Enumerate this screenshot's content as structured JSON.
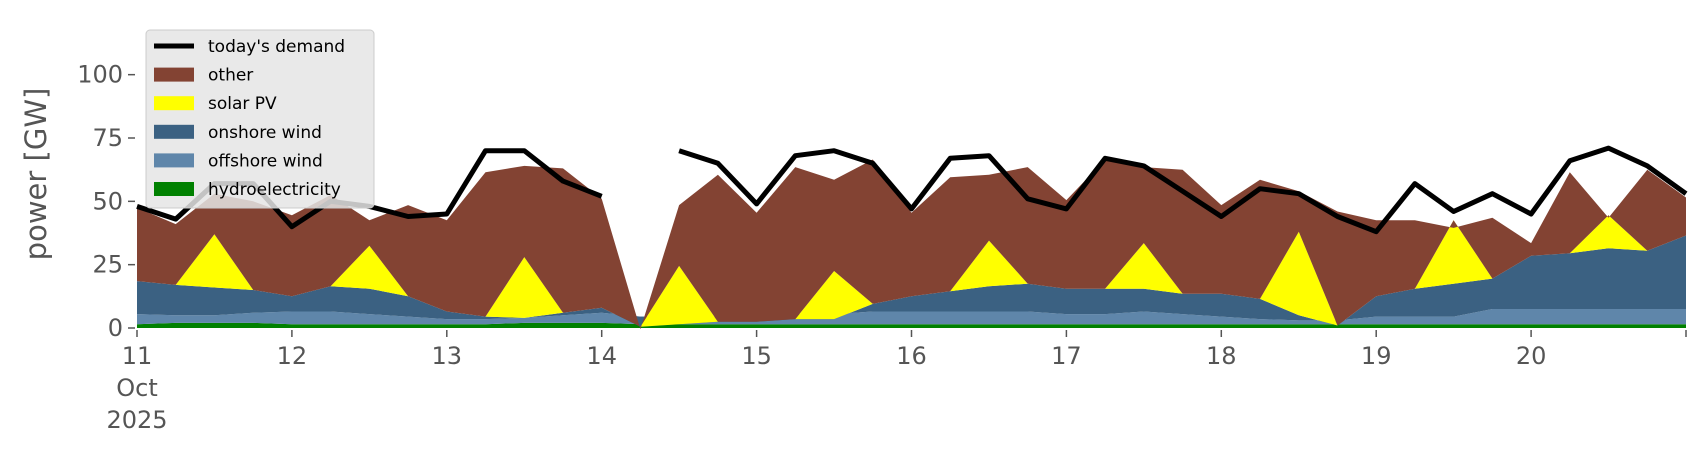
{
  "chart_data": {
    "type": "area",
    "ylabel": "power [GW]",
    "ylim": [
      0,
      120
    ],
    "xlim": [
      0,
      10
    ],
    "grid": false,
    "legend_placement": "top-left",
    "y_ticks": [
      0,
      25,
      50,
      75,
      100
    ],
    "x_ticks": [
      {
        "value": 0,
        "lines": [
          "11",
          "Oct",
          "2025"
        ]
      },
      {
        "value": 1,
        "lines": [
          "12"
        ]
      },
      {
        "value": 2,
        "lines": [
          "13"
        ]
      },
      {
        "value": 3,
        "lines": [
          "14"
        ]
      },
      {
        "value": 4,
        "lines": [
          "15"
        ]
      },
      {
        "value": 5,
        "lines": [
          "16"
        ]
      },
      {
        "value": 6,
        "lines": [
          "17"
        ]
      },
      {
        "value": 7,
        "lines": [
          "18"
        ]
      },
      {
        "value": 8,
        "lines": [
          "19"
        ]
      },
      {
        "value": 9,
        "lines": [
          "20"
        ]
      },
      {
        "value": 10,
        "lines": [
          ""
        ]
      }
    ],
    "x": [
      0,
      0.25,
      0.5,
      0.75,
      1,
      1.25,
      1.5,
      1.75,
      2,
      2.25,
      2.5,
      2.75,
      3,
      3.25,
      3.5,
      3.75,
      4,
      4.25,
      4.5,
      4.75,
      5,
      5.25,
      5.5,
      5.75,
      6,
      6.25,
      6.5,
      6.75,
      7,
      7.25,
      7.5,
      7.75,
      8,
      8.25,
      8.5,
      8.75,
      9,
      9.25,
      9.5,
      9.75,
      10
    ],
    "series": [
      {
        "name": "hydroelectricity",
        "color": "#008000",
        "kind": "area",
        "values": [
          1.5,
          2,
          2,
          2,
          1.5,
          1.5,
          1.5,
          1.5,
          1.5,
          1.5,
          2,
          2,
          2,
          1.5,
          1.5,
          1.5,
          1.5,
          1.5,
          1.5,
          1.5,
          1.5,
          1.5,
          1.5,
          1.5,
          1.5,
          1.5,
          1.5,
          1.5,
          1.5,
          1.5,
          1.5,
          1.5,
          1.5,
          1.5,
          1.5,
          1.5,
          1.5,
          1.5,
          1.5,
          1.5,
          1.5
        ]
      },
      {
        "name": "offshore wind",
        "color": "#5f86aa",
        "kind": "area",
        "values": [
          4,
          3,
          3,
          4,
          5,
          5,
          4,
          3,
          2,
          2,
          2,
          3,
          4,
          3,
          3,
          3,
          4,
          4,
          4,
          5,
          5,
          5,
          5,
          5,
          4,
          4,
          5,
          4,
          3,
          2,
          1.5,
          1.5,
          3,
          3,
          3,
          6,
          6,
          6,
          6,
          6,
          6
        ]
      },
      {
        "name": "onshore wind",
        "color": "#3b6182",
        "kind": "area",
        "values": [
          13,
          12,
          11,
          9,
          6,
          10,
          10,
          8,
          3,
          1,
          0,
          1,
          2,
          -4,
          -3,
          -2,
          -3,
          -2,
          -2,
          3,
          6,
          8,
          10,
          11,
          10,
          10,
          9,
          8,
          9,
          8,
          2,
          -2,
          8,
          11,
          13,
          12,
          21,
          22,
          24,
          23,
          29
        ]
      },
      {
        "name": "solar PV",
        "color": "#ffff00",
        "kind": "area",
        "values": [
          0,
          0,
          21,
          0,
          0,
          0,
          17,
          0,
          0,
          0,
          24,
          0,
          0,
          0,
          23,
          0,
          0,
          0,
          19,
          0,
          0,
          0,
          18,
          0,
          0,
          0,
          18,
          0,
          0,
          0,
          33,
          0,
          0,
          0,
          25,
          0,
          0,
          0,
          13,
          0,
          0
        ]
      },
      {
        "name": "other",
        "color": "#834333",
        "kind": "area",
        "values": [
          29,
          24,
          16,
          35,
          32,
          36,
          10,
          36,
          36,
          57,
          36,
          57,
          43,
          -1,
          24,
          58,
          43,
          60,
          36,
          57,
          33,
          45,
          26,
          46,
          35,
          51,
          30,
          49,
          35,
          47,
          16,
          45,
          30,
          27,
          -3,
          24,
          5,
          32,
          -1,
          32,
          15
        ]
      },
      {
        "name": "today's demand",
        "color": "#000000",
        "kind": "line",
        "values": [
          48,
          43,
          57,
          57,
          40,
          50,
          48,
          44,
          45,
          70,
          70,
          58,
          52,
          null,
          70,
          65,
          49,
          68,
          70,
          65,
          47,
          67,
          68,
          51,
          47,
          67,
          64,
          54,
          44,
          55,
          53,
          44,
          38,
          57,
          46,
          53,
          45,
          66,
          71,
          64,
          53
        ]
      }
    ]
  }
}
